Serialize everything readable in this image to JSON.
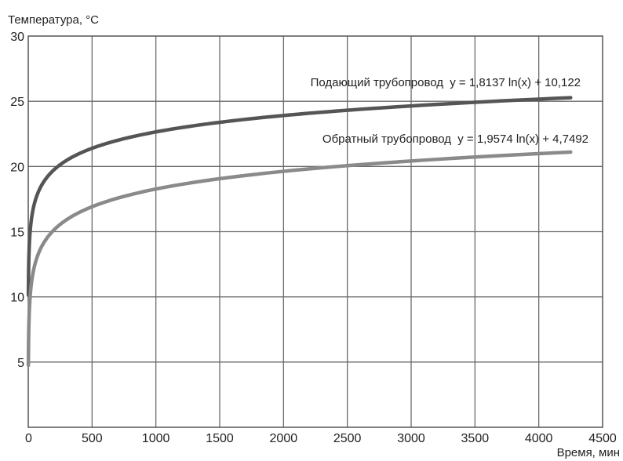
{
  "chart_data": {
    "type": "line",
    "ylabel": "Температура, °C",
    "xlabel": "Время, мин",
    "xlim": [
      0,
      4500
    ],
    "ylim": [
      0,
      30
    ],
    "x_ticks": [
      "0",
      "500",
      "1000",
      "1500",
      "2000",
      "2500",
      "3000",
      "3500",
      "4000",
      "4500"
    ],
    "y_ticks": [
      "5",
      "10",
      "15",
      "20",
      "25",
      "30"
    ],
    "grid": true,
    "series": [
      {
        "name": "Подающий трубопровод",
        "equation": "y = 1,8137 ln(x) + 10,122",
        "coef_a": 1.8137,
        "coef_b": 10.122,
        "x_range": [
          1,
          4250
        ],
        "color": "#555555",
        "x": [
          1,
          100,
          250,
          500,
          1000,
          1500,
          2000,
          2500,
          3000,
          3500,
          4000,
          4250
        ],
        "y": [
          10.1,
          18.5,
          20.1,
          21.4,
          22.6,
          23.4,
          23.9,
          24.3,
          24.6,
          24.9,
          25.2,
          25.3
        ]
      },
      {
        "name": "Обратный трубопровод",
        "equation": "y = 1,9574 ln(x) + 4,7492",
        "coef_a": 1.9574,
        "coef_b": 4.7492,
        "x_range": [
          1,
          4250
        ],
        "color": "#8a8a8a",
        "x": [
          1,
          100,
          250,
          500,
          1000,
          1500,
          2000,
          2500,
          3000,
          3500,
          4000,
          4250
        ],
        "y": [
          4.7,
          13.8,
          15.6,
          16.9,
          18.3,
          19.1,
          19.6,
          20.1,
          20.4,
          20.7,
          21.0,
          21.1
        ]
      }
    ]
  }
}
